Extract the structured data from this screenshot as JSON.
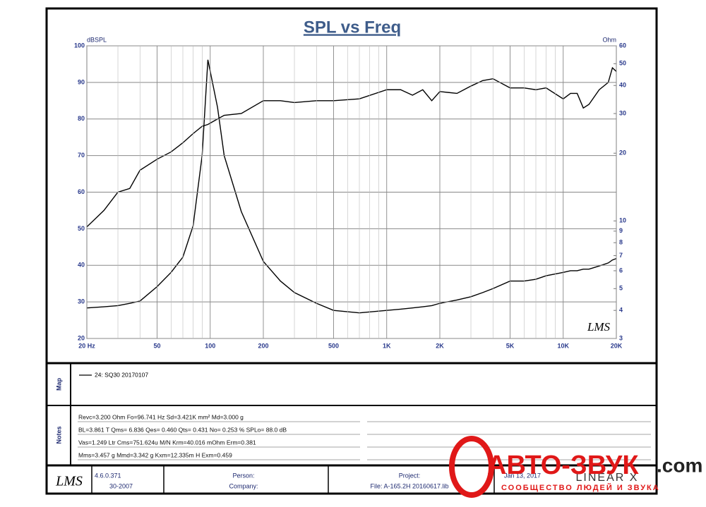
{
  "chart_data": {
    "type": "line",
    "title": "SPL vs Freq",
    "y_label": "dBSPL",
    "y2_label": "Ohm",
    "logo": "LMS",
    "xscale": "log",
    "y2scale": "log",
    "grid": true,
    "xlim": [
      20,
      20000
    ],
    "xticks": [
      {
        "value": 20,
        "label": "20  Hz"
      },
      50,
      100,
      200,
      500,
      {
        "value": 1000,
        "label": "1K"
      },
      {
        "value": 2000,
        "label": "2K"
      },
      {
        "value": 5000,
        "label": "5K"
      },
      {
        "value": 10000,
        "label": "10K"
      },
      {
        "value": 20000,
        "label": "20K"
      }
    ],
    "xgrid": [
      30,
      40,
      60,
      70,
      80,
      90,
      300,
      400,
      600,
      700,
      800,
      900,
      3000,
      4000,
      6000,
      7000,
      8000,
      9000
    ],
    "ylim": [
      20,
      100
    ],
    "yticks": [
      20,
      30,
      40,
      50,
      60,
      70,
      80,
      90,
      100
    ],
    "y2lim": [
      3,
      60
    ],
    "y2ticks": [
      3,
      4,
      5,
      6,
      7,
      8,
      9,
      10,
      20,
      30,
      40,
      50,
      60
    ],
    "x": [
      20,
      25,
      30,
      35,
      40,
      50,
      60,
      70,
      80,
      90,
      97,
      110,
      120,
      150,
      200,
      250,
      300,
      400,
      500,
      700,
      1000,
      1200,
      1400,
      1600,
      1800,
      2000,
      2500,
      3000,
      3500,
      4000,
      5000,
      6000,
      7000,
      8000,
      10000,
      11000,
      12000,
      13000,
      14000,
      16000,
      18000,
      19000,
      20000
    ],
    "series": [
      {
        "name": "24: SQ30  20170107",
        "color": "#000000",
        "values": [
          50.5,
          55,
          60,
          61,
          66,
          69,
          71,
          73.5,
          76,
          78,
          78.5,
          80,
          81,
          81.5,
          85,
          85,
          84.5,
          85,
          85,
          85.5,
          88,
          88,
          86.5,
          88,
          85,
          87.5,
          87,
          89,
          90.5,
          91,
          88.5,
          88.5,
          88,
          88.5,
          85.5,
          87,
          87,
          83,
          84,
          88,
          90,
          94,
          93
        ]
      },
      {
        "axis": "y2",
        "color": "#000000",
        "values": [
          4.1,
          4.15,
          4.2,
          4.3,
          4.4,
          5.1,
          5.9,
          6.9,
          9.5,
          19.5,
          52,
          32,
          19.5,
          11,
          6.6,
          5.4,
          4.8,
          4.3,
          4.0,
          3.9,
          4.0,
          4.05,
          4.1,
          4.15,
          4.2,
          4.3,
          4.45,
          4.6,
          4.8,
          5.0,
          5.4,
          5.4,
          5.5,
          5.7,
          5.9,
          6.0,
          6.0,
          6.1,
          6.1,
          6.3,
          6.5,
          6.7,
          6.8
        ]
      }
    ]
  },
  "map": {
    "heading": "Map"
  },
  "notes": {
    "heading": "Notes",
    "lines": [
      "Revc=3.200 Ohm  Fo=96.741 Hz  Sd=3.421K mm²  Md=3.000 g",
      "BL=3.861 T   Qms= 6.836  Qes= 0.460  Qts= 0.431  No= 0.253 %  SPLo= 88.0 dB",
      "Vas=1.249 Ltr  Cms=751.624u M/N  Krm=40.016 mOhm  Erm=0.381",
      "Mms=3.457 g  Mmd=3.342 g  Kxm=12.335m H  Exm=0.459"
    ]
  },
  "footer": {
    "logo": "LMS",
    "version": "4.6.0.371",
    "build": "30-2007",
    "person": "Person:",
    "company": "Company:",
    "project": "Project:",
    "file": "File: A-165.2H 20160617.lib",
    "date": "Jan 13, 2017",
    "brand": "LINEAR X"
  },
  "watermark": {
    "name": "АВТО-ЗВУК",
    "domain": ".com",
    "tagline": "СООБЩЕСТВО ЛЮДЕЙ И ЗВУКА"
  }
}
